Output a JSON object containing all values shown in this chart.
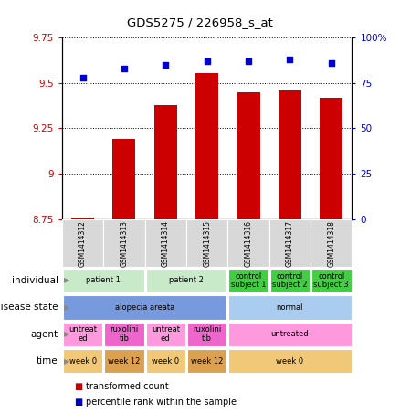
{
  "title": "GDS5275 / 226958_s_at",
  "samples": [
    "GSM1414312",
    "GSM1414313",
    "GSM1414314",
    "GSM1414315",
    "GSM1414316",
    "GSM1414317",
    "GSM1414318"
  ],
  "bar_values": [
    8.76,
    9.19,
    9.38,
    9.555,
    9.45,
    9.46,
    9.42
  ],
  "dot_values": [
    78,
    83,
    85,
    87,
    87,
    88,
    86
  ],
  "ylim_left": [
    8.75,
    9.75
  ],
  "ylim_right": [
    0,
    100
  ],
  "yticks_left": [
    8.75,
    9.0,
    9.25,
    9.5,
    9.75
  ],
  "yticks_right": [
    0,
    25,
    50,
    75,
    100
  ],
  "ytick_labels_left": [
    "8.75",
    "9",
    "9.25",
    "9.5",
    "9.75"
  ],
  "ytick_labels_right": [
    "0",
    "25",
    "50",
    "75",
    "100%"
  ],
  "bar_color": "#cc0000",
  "dot_color": "#0000cc",
  "annotation_rows": [
    {
      "label": "individual",
      "cells": [
        {
          "text": "patient 1",
          "span": 2,
          "color": "#c8eac8"
        },
        {
          "text": "patient 2",
          "span": 2,
          "color": "#c8eac8"
        },
        {
          "text": "control\nsubject 1",
          "span": 1,
          "color": "#44cc44"
        },
        {
          "text": "control\nsubject 2",
          "span": 1,
          "color": "#44cc44"
        },
        {
          "text": "control\nsubject 3",
          "span": 1,
          "color": "#44cc44"
        }
      ]
    },
    {
      "label": "disease state",
      "cells": [
        {
          "text": "alopecia areata",
          "span": 4,
          "color": "#7799dd"
        },
        {
          "text": "normal",
          "span": 3,
          "color": "#aaccee"
        }
      ]
    },
    {
      "label": "agent",
      "cells": [
        {
          "text": "untreat\ned",
          "span": 1,
          "color": "#ff99dd"
        },
        {
          "text": "ruxolini\ntib",
          "span": 1,
          "color": "#ee66cc"
        },
        {
          "text": "untreat\ned",
          "span": 1,
          "color": "#ff99dd"
        },
        {
          "text": "ruxolini\ntib",
          "span": 1,
          "color": "#ee66cc"
        },
        {
          "text": "untreated",
          "span": 3,
          "color": "#ff99dd"
        }
      ]
    },
    {
      "label": "time",
      "cells": [
        {
          "text": "week 0",
          "span": 1,
          "color": "#f0c878"
        },
        {
          "text": "week 12",
          "span": 1,
          "color": "#dba050"
        },
        {
          "text": "week 0",
          "span": 1,
          "color": "#f0c878"
        },
        {
          "text": "week 12",
          "span": 1,
          "color": "#dba050"
        },
        {
          "text": "week 0",
          "span": 3,
          "color": "#f0c878"
        }
      ]
    }
  ],
  "legend_items": [
    {
      "label": "transformed count",
      "color": "#cc0000"
    },
    {
      "label": "percentile rank within the sample",
      "color": "#0000cc"
    }
  ]
}
